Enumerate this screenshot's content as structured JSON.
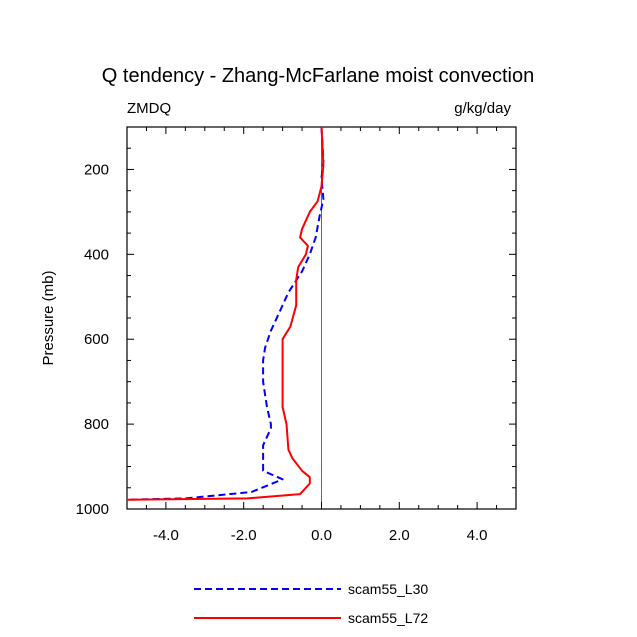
{
  "chart_data": {
    "type": "line",
    "title": "Q tendency - Zhang-McFarlane moist convection",
    "left_label": "ZMDQ",
    "right_label": "g/kg/day",
    "xlabel": "",
    "ylabel": "Pressure (mb)",
    "xlim": [
      -5,
      5
    ],
    "ylim": [
      1000,
      100
    ],
    "y_inverted": true,
    "xticks": [
      -4,
      -2,
      0,
      2,
      4
    ],
    "xtick_labels": [
      "-4.0",
      "-2.0",
      "0.0",
      "2.0",
      "4.0"
    ],
    "yticks": [
      200,
      400,
      600,
      800,
      1000
    ],
    "ytick_labels": [
      "200",
      "400",
      "600",
      "800",
      "1000"
    ],
    "zero_line": true,
    "legend_position": "bottom",
    "series": [
      {
        "name": "scam55_L30",
        "color": "#0000ff",
        "dash": "dashed",
        "points": [
          [
            0.0,
            100
          ],
          [
            0.05,
            180
          ],
          [
            0.0,
            220
          ],
          [
            0.05,
            270
          ],
          [
            -0.05,
            310
          ],
          [
            -0.15,
            360
          ],
          [
            -0.3,
            400
          ],
          [
            -0.5,
            440
          ],
          [
            -0.85,
            490
          ],
          [
            -1.1,
            540
          ],
          [
            -1.3,
            580
          ],
          [
            -1.45,
            620
          ],
          [
            -1.5,
            650
          ],
          [
            -1.5,
            700
          ],
          [
            -1.4,
            760
          ],
          [
            -1.3,
            800
          ],
          [
            -1.3,
            810
          ],
          [
            -1.5,
            850
          ],
          [
            -1.5,
            880
          ],
          [
            -1.5,
            910
          ],
          [
            -1.0,
            930
          ],
          [
            -1.8,
            960
          ],
          [
            -3.5,
            975
          ],
          [
            -5.0,
            978
          ]
        ]
      },
      {
        "name": "scam55_L72",
        "color": "#ff0000",
        "dash": "solid",
        "points": [
          [
            0.0,
            100
          ],
          [
            0.05,
            190
          ],
          [
            0.0,
            240
          ],
          [
            -0.1,
            275
          ],
          [
            -0.3,
            300
          ],
          [
            -0.5,
            340
          ],
          [
            -0.55,
            360
          ],
          [
            -0.35,
            380
          ],
          [
            -0.4,
            400
          ],
          [
            -0.6,
            430
          ],
          [
            -0.65,
            460
          ],
          [
            -0.65,
            520
          ],
          [
            -0.8,
            570
          ],
          [
            -1.0,
            600
          ],
          [
            -1.0,
            700
          ],
          [
            -1.0,
            760
          ],
          [
            -0.9,
            800
          ],
          [
            -0.85,
            860
          ],
          [
            -0.75,
            880
          ],
          [
            -0.5,
            910
          ],
          [
            -0.3,
            925
          ],
          [
            -0.3,
            940
          ],
          [
            -0.55,
            965
          ],
          [
            -1.9,
            975
          ],
          [
            -5.0,
            978
          ]
        ]
      }
    ]
  }
}
